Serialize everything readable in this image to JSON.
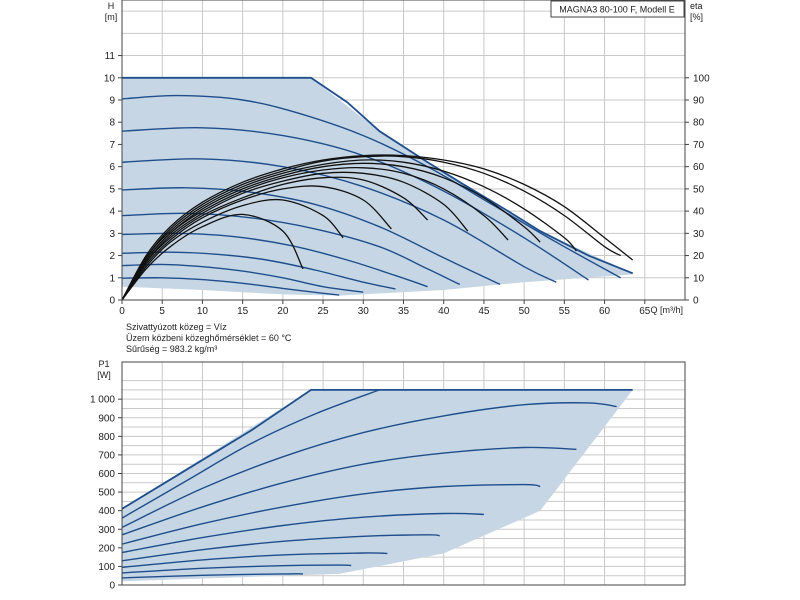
{
  "title": "MAGNA3 80-100 F, Modell E",
  "notes": [
    "Szivattyúzott közeg = Víz",
    "Üzem közbeni közeghőmérséklet = 60 °C",
    "Sűrűség = 983.2 kg/m³"
  ],
  "colors": {
    "area": "#c6d6e4",
    "curve": "#1f4e8c",
    "efficiency": "#111111",
    "grid": "#c9c9c9"
  },
  "chart_data": [
    {
      "type": "line",
      "title": "MAGNA3 80-100 F, Modell E",
      "ylabel_unit": "[m]",
      "ylabel": "H",
      "xlabel": "Q [m³/h]",
      "y2label": "eta",
      "y2label_unit": "[%]",
      "xlim": [
        0,
        70
      ],
      "ylim": [
        0,
        13.5
      ],
      "y2lim": [
        0,
        135
      ],
      "x_ticks": [
        0,
        5,
        10,
        15,
        20,
        25,
        30,
        35,
        40,
        45,
        50,
        55,
        60,
        65
      ],
      "y_ticks": [
        0,
        1,
        2,
        3,
        4,
        5,
        6,
        7,
        8,
        9,
        10,
        11
      ],
      "y2_ticks": [
        0,
        10,
        20,
        30,
        40,
        50,
        60,
        70,
        80,
        90,
        100
      ],
      "grid": true,
      "operating_area": {
        "upper": [
          [
            0,
            10
          ],
          [
            23.5,
            10
          ],
          [
            32,
            7.6
          ],
          [
            42,
            5.3
          ],
          [
            52,
            3.1
          ],
          [
            63.5,
            1.2
          ]
        ],
        "lower": [
          [
            0,
            0.6
          ],
          [
            10,
            0.45
          ],
          [
            20,
            0.25
          ],
          [
            27,
            0.2
          ],
          [
            40,
            0.45
          ],
          [
            50,
            0.8
          ],
          [
            63.5,
            1.15
          ]
        ]
      },
      "head_curves": [
        {
          "x": [
            0,
            5,
            10,
            15,
            20,
            23.5,
            28,
            32,
            38,
            42,
            48,
            52,
            58,
            63.5
          ],
          "y": [
            10,
            10,
            10,
            10,
            10,
            10,
            8.9,
            7.6,
            6.2,
            5.3,
            4.0,
            3.1,
            2.0,
            1.2
          ]
        },
        {
          "x": [
            0,
            7,
            15,
            22,
            30,
            38,
            46,
            54,
            62
          ],
          "y": [
            9.05,
            9.2,
            9.0,
            8.4,
            7.4,
            6.0,
            4.3,
            2.6,
            1.0
          ]
        },
        {
          "x": [
            0,
            10,
            20,
            30,
            40,
            50,
            58
          ],
          "y": [
            7.6,
            7.75,
            7.4,
            6.5,
            4.9,
            2.8,
            0.9
          ]
        },
        {
          "x": [
            0,
            10,
            20,
            30,
            40,
            50,
            54
          ],
          "y": [
            6.2,
            6.35,
            6.0,
            5.1,
            3.6,
            1.5,
            0.8
          ]
        },
        {
          "x": [
            0,
            8,
            16,
            24,
            32,
            40,
            47
          ],
          "y": [
            4.95,
            5.05,
            4.85,
            4.3,
            3.3,
            1.9,
            0.7
          ]
        },
        {
          "x": [
            0,
            8,
            16,
            24,
            32,
            38,
            42
          ],
          "y": [
            3.8,
            3.9,
            3.7,
            3.2,
            2.4,
            1.4,
            0.7
          ]
        },
        {
          "x": [
            0,
            7,
            14,
            21,
            28,
            34,
            38
          ],
          "y": [
            2.95,
            3.0,
            2.85,
            2.45,
            1.8,
            1.1,
            0.6
          ]
        },
        {
          "x": [
            0,
            6,
            12,
            18,
            24,
            30,
            34
          ],
          "y": [
            2.1,
            2.15,
            2.05,
            1.8,
            1.35,
            0.8,
            0.5
          ]
        },
        {
          "x": [
            0,
            5,
            10,
            15,
            20,
            25,
            30
          ],
          "y": [
            1.55,
            1.6,
            1.5,
            1.3,
            1.0,
            0.6,
            0.35
          ]
        },
        {
          "x": [
            0,
            5,
            10,
            15,
            20,
            25,
            27
          ],
          "y": [
            0.98,
            1.0,
            0.92,
            0.75,
            0.52,
            0.3,
            0.22
          ]
        }
      ],
      "efficiency_curves": [
        {
          "x": [
            0,
            3,
            6,
            10,
            15,
            20,
            25,
            30,
            35,
            40,
            45,
            50,
            55,
            60,
            63.5
          ],
          "y": [
            0,
            20,
            33,
            44,
            53,
            59,
            63,
            65,
            65,
            63,
            59,
            52,
            42,
            28,
            18
          ]
        },
        {
          "x": [
            0,
            3,
            6,
            10,
            15,
            20,
            25,
            30,
            35,
            40,
            45,
            50,
            55,
            60,
            62
          ],
          "y": [
            0,
            19,
            32,
            43,
            52,
            58,
            62.5,
            64.5,
            64.5,
            62,
            57,
            49,
            38,
            24,
            20
          ]
        },
        {
          "x": [
            0,
            3,
            6,
            10,
            15,
            20,
            25,
            30,
            35,
            40,
            45,
            50,
            55,
            56.5
          ],
          "y": [
            0,
            19,
            31,
            42,
            51,
            57,
            61,
            63,
            62,
            58,
            51,
            41,
            28,
            22
          ]
        },
        {
          "x": [
            0,
            3,
            6,
            10,
            15,
            20,
            25,
            30,
            35,
            40,
            45,
            50,
            52
          ],
          "y": [
            0,
            18,
            30,
            41,
            50,
            56,
            60,
            61.5,
            60,
            55,
            46,
            33,
            26
          ]
        },
        {
          "x": [
            0,
            3,
            6,
            10,
            15,
            20,
            25,
            30,
            35,
            40,
            45,
            48
          ],
          "y": [
            0,
            18,
            30,
            40,
            49,
            55,
            58.5,
            59.5,
            57,
            50,
            38,
            27
          ]
        },
        {
          "x": [
            0,
            3,
            6,
            10,
            15,
            20,
            25,
            30,
            35,
            40,
            43
          ],
          "y": [
            0,
            17,
            29,
            39,
            48,
            53.5,
            57,
            57,
            53,
            43,
            31
          ]
        },
        {
          "x": [
            0,
            3,
            6,
            10,
            15,
            20,
            25,
            30,
            35,
            38
          ],
          "y": [
            0,
            17,
            28,
            38,
            46,
            52,
            55,
            54,
            46,
            36
          ]
        },
        {
          "x": [
            0,
            3,
            6,
            10,
            15,
            20,
            25,
            30,
            33.5
          ],
          "y": [
            0,
            16,
            27,
            37,
            45,
            50,
            51,
            45,
            32
          ]
        },
        {
          "x": [
            0,
            3,
            6,
            10,
            15,
            20,
            25,
            27.5
          ],
          "y": [
            0,
            15,
            26,
            35,
            42.5,
            45,
            38,
            28
          ]
        },
        {
          "x": [
            0,
            3,
            6,
            10,
            15,
            20,
            22.5
          ],
          "y": [
            0,
            14,
            24,
            33,
            38.5,
            31,
            14
          ]
        }
      ]
    },
    {
      "type": "line",
      "ylabel": "P1",
      "ylabel_unit": "[W]",
      "xlim": [
        0,
        70
      ],
      "ylim": [
        0,
        1200
      ],
      "y_ticks": [
        0,
        100,
        200,
        300,
        400,
        500,
        600,
        700,
        800,
        900,
        1000
      ],
      "y_tick_labels": [
        "0",
        "100",
        "200",
        "300",
        "400",
        "500",
        "600",
        "700",
        "800",
        "900",
        "1 000"
      ],
      "grid": true,
      "operating_area": {
        "upper": [
          [
            0,
            410
          ],
          [
            23.5,
            1050
          ],
          [
            63.5,
            1050
          ]
        ],
        "lower": [
          [
            0,
            20
          ],
          [
            27,
            60
          ],
          [
            40,
            170
          ],
          [
            52,
            400
          ],
          [
            63.5,
            1050
          ]
        ]
      },
      "power_curves": [
        {
          "x": [
            0,
            8,
            16,
            23.5,
            40,
            63.5
          ],
          "y": [
            410,
            620,
            830,
            1050,
            1050,
            1050
          ]
        },
        {
          "x": [
            0,
            8,
            16,
            24,
            32
          ],
          "y": [
            360,
            560,
            760,
            920,
            1050
          ]
        },
        {
          "x": [
            0,
            10,
            20,
            30,
            40,
            50,
            58,
            61.5
          ],
          "y": [
            310,
            520,
            690,
            820,
            910,
            970,
            980,
            960
          ]
        },
        {
          "x": [
            0,
            10,
            20,
            30,
            40,
            50,
            56.5
          ],
          "y": [
            270,
            420,
            550,
            650,
            710,
            740,
            730
          ]
        },
        {
          "x": [
            0,
            10,
            20,
            30,
            40,
            50,
            52
          ],
          "y": [
            220,
            330,
            420,
            490,
            530,
            540,
            530
          ]
        },
        {
          "x": [
            0,
            10,
            20,
            30,
            40,
            45
          ],
          "y": [
            175,
            255,
            320,
            365,
            385,
            380
          ]
        },
        {
          "x": [
            0,
            10,
            20,
            30,
            38,
            39.5
          ],
          "y": [
            130,
            190,
            235,
            262,
            270,
            265
          ]
        },
        {
          "x": [
            0,
            10,
            20,
            30,
            33
          ],
          "y": [
            95,
            135,
            162,
            172,
            170
          ]
        },
        {
          "x": [
            0,
            10,
            20,
            27,
            28.5
          ],
          "y": [
            65,
            90,
            104,
            107,
            105
          ]
        },
        {
          "x": [
            0,
            10,
            20,
            22.5
          ],
          "y": [
            38,
            52,
            60,
            60
          ]
        }
      ]
    }
  ]
}
